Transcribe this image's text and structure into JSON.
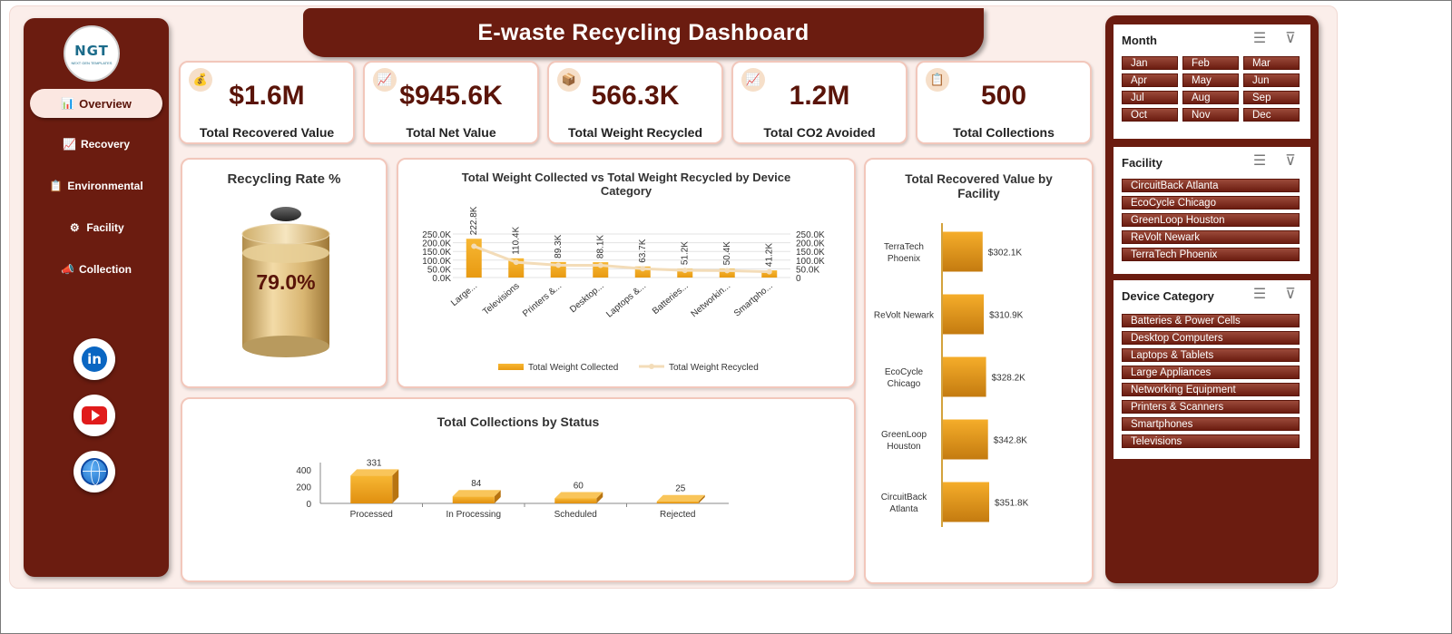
{
  "header": {
    "title": "E-waste Recycling Dashboard"
  },
  "logo": {
    "text": "NGT",
    "subtext": "NEXT GEN TEMPLATES"
  },
  "nav": {
    "items": [
      {
        "label": "Overview",
        "icon": "bar-chart-icon"
      },
      {
        "label": "Recovery",
        "icon": "line-chart-icon"
      },
      {
        "label": "Environmental",
        "icon": "clipboard-icon"
      },
      {
        "label": "Facility",
        "icon": "gear-icon"
      },
      {
        "label": "Collection",
        "icon": "megaphone-icon"
      }
    ],
    "social": [
      {
        "name": "linkedin-icon",
        "glyph": "in"
      },
      {
        "name": "youtube-icon"
      },
      {
        "name": "globe-icon"
      }
    ]
  },
  "kpis": [
    {
      "value": "$1.6M",
      "label": "Total Recovered Value",
      "icon": "money-bag-icon",
      "glyph": "💰"
    },
    {
      "value": "$945.6K",
      "label": "Total Net Value",
      "icon": "chart-up-icon",
      "glyph": "📈"
    },
    {
      "value": "566.3K",
      "label": "Total Weight Recycled",
      "icon": "package-icon",
      "glyph": "📦"
    },
    {
      "value": "1.2M",
      "label": "Total CO2 Avoided",
      "icon": "chart-up-icon",
      "glyph": "📈"
    },
    {
      "value": "500",
      "label": "Total Collections",
      "icon": "clipboard-icon",
      "glyph": "📋"
    }
  ],
  "recycling_rate": {
    "title": "Recycling Rate %",
    "value": "79.0%"
  },
  "weight_chart": {
    "title_line1": "Total Weight Collected vs Total Weight Recycled by Device",
    "title_line2": "Category",
    "legend": [
      "Total Weight Collected",
      "Total Weight Recycled"
    ],
    "y_ticks_left": [
      "250.0K",
      "200.0K",
      "150.0K",
      "100.0K",
      "50.0K",
      "0.0K"
    ],
    "y_ticks_right": [
      "250.0K",
      "200.0K",
      "150.0K",
      "100.0K",
      "50.0K",
      "0"
    ]
  },
  "status_chart": {
    "title": "Total Collections by Status",
    "y_ticks": [
      "400",
      "200",
      "0"
    ]
  },
  "facility_chart": {
    "title_line1": "Total Recovered Value by",
    "title_line2": "Facility"
  },
  "chart_data": [
    {
      "type": "bar",
      "title": "Total Weight Collected vs Total Weight Recycled by Device Category",
      "categories": [
        "Large...",
        "Televisions",
        "Printers &...",
        "Desktop...",
        "Laptops &...",
        "Batteries...",
        "Networkin...",
        "Smartpho..."
      ],
      "series": [
        {
          "name": "Total Weight Collected",
          "type": "bar",
          "values": [
            222800,
            110400,
            89300,
            88100,
            63700,
            51200,
            50400,
            41200
          ],
          "labels": [
            "222.8K",
            "110.4K",
            "89.3K",
            "88.1K",
            "63.7K",
            "51.2K",
            "50.4K",
            "41.2K"
          ]
        },
        {
          "name": "Total Weight Recycled",
          "type": "line",
          "values": [
            180000,
            88000,
            71000,
            70000,
            51000,
            41000,
            40000,
            33000
          ]
        }
      ],
      "ylim": [
        0,
        250000
      ]
    },
    {
      "type": "bar",
      "title": "Total Collections by Status",
      "categories": [
        "Processed",
        "In Processing",
        "Scheduled",
        "Rejected"
      ],
      "values": [
        331,
        84,
        60,
        25
      ],
      "ylim": [
        0,
        400
      ]
    },
    {
      "type": "bar",
      "orientation": "horizontal",
      "title": "Total Recovered Value by Facility",
      "categories": [
        "TerraTech Phoenix",
        "ReVolt Newark",
        "EcoCycle Chicago",
        "GreenLoop Houston",
        "CircuitBack Atlanta"
      ],
      "category_lines": [
        [
          "TerraTech",
          "Phoenix"
        ],
        [
          "ReVolt Newark"
        ],
        [
          "EcoCycle",
          "Chicago"
        ],
        [
          "GreenLoop",
          "Houston"
        ],
        [
          "CircuitBack",
          "Atlanta"
        ]
      ],
      "values": [
        302100,
        310900,
        328200,
        342800,
        351800
      ],
      "labels": [
        "$302.1K",
        "$310.9K",
        "$328.2K",
        "$342.8K",
        "$351.8K"
      ]
    }
  ],
  "slicers": {
    "month": {
      "title": "Month",
      "items": [
        "Jan",
        "Feb",
        "Mar",
        "Apr",
        "May",
        "Jun",
        "Jul",
        "Aug",
        "Sep",
        "Oct",
        "Nov",
        "Dec"
      ]
    },
    "facility": {
      "title": "Facility",
      "items": [
        "CircuitBack Atlanta",
        "EcoCycle Chicago",
        "GreenLoop Houston",
        "ReVolt Newark",
        "TerraTech Phoenix"
      ]
    },
    "device": {
      "title": "Device Category",
      "items": [
        "Batteries & Power Cells",
        "Desktop Computers",
        "Laptops & Tablets",
        "Large Appliances",
        "Networking Equipment",
        "Printers & Scanners",
        "Smartphones",
        "Televisions"
      ]
    }
  },
  "colors": {
    "maroon": "#6b1c10",
    "gold": "#f3a623",
    "gold_dark": "#c9801a",
    "line": "#f3dcb8"
  }
}
